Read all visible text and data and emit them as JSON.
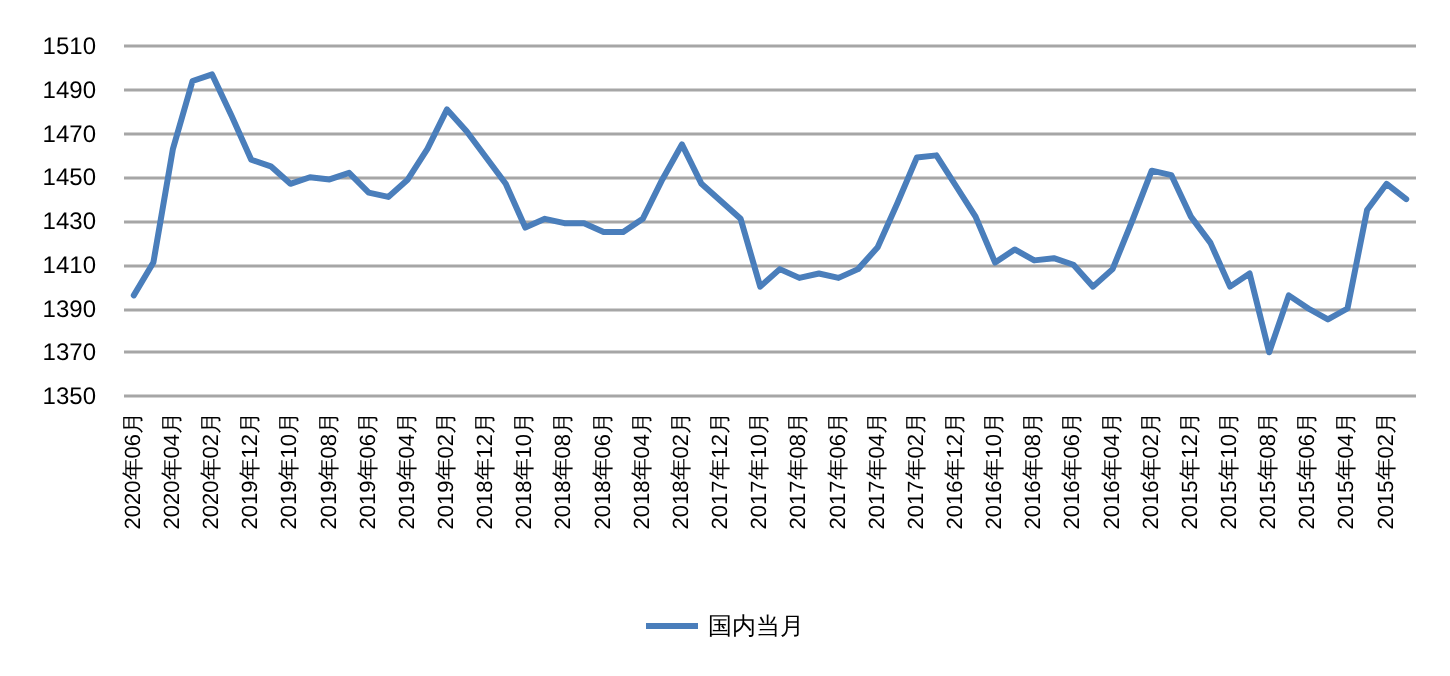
{
  "chart_data": {
    "type": "line",
    "categories": [
      "2020年06月",
      null,
      "2020年04月",
      null,
      "2020年02月",
      null,
      "2019年12月",
      null,
      "2019年10月",
      null,
      "2019年08月",
      null,
      "2019年06月",
      null,
      "2019年04月",
      null,
      "2019年02月",
      null,
      "2018年12月",
      null,
      "2018年10月",
      null,
      "2018年08月",
      null,
      "2018年06月",
      null,
      "2018年04月",
      null,
      "2018年02月",
      null,
      "2017年12月",
      null,
      "2017年10月",
      null,
      "2017年08月",
      null,
      "2017年06月",
      null,
      "2017年04月",
      null,
      "2017年02月",
      null,
      "2016年12月",
      null,
      "2016年10月",
      null,
      "2016年08月",
      null,
      "2016年06月",
      null,
      "2016年04月",
      null,
      "2016年02月",
      null,
      "2015年12月",
      null,
      "2015年10月",
      null,
      "2015年08月",
      null,
      "2015年06月",
      null,
      "2015年04月",
      null,
      "2015年02月",
      null
    ],
    "series": [
      {
        "name": "国内当月",
        "color": "#4a7ebb",
        "values": [
          1396,
          1411,
          1463,
          1494,
          1497,
          1478,
          1458,
          1455,
          1447,
          1450,
          1449,
          1452,
          1443,
          1441,
          1449,
          1463,
          1481,
          1471,
          1459,
          1447,
          1427,
          1431,
          1429,
          1429,
          1425,
          1425,
          1431,
          1449,
          1465,
          1447,
          1439,
          1431,
          1400,
          1408,
          1404,
          1406,
          1404,
          1408,
          1418,
          1438,
          1459,
          1460,
          1446,
          1432,
          1411,
          1417,
          1412,
          1413,
          1410,
          1400,
          1408,
          1430,
          1453,
          1451,
          1432,
          1420,
          1400,
          1406,
          1370,
          1396,
          1390,
          1385,
          1390,
          1435,
          1447,
          1440
        ]
      }
    ],
    "ylim": [
      1350,
      1510
    ],
    "yticks": [
      1350,
      1370,
      1390,
      1410,
      1430,
      1450,
      1470,
      1490,
      1510
    ],
    "grid": "y",
    "legend": "bottom",
    "marker": "none",
    "line_style": "solid"
  }
}
